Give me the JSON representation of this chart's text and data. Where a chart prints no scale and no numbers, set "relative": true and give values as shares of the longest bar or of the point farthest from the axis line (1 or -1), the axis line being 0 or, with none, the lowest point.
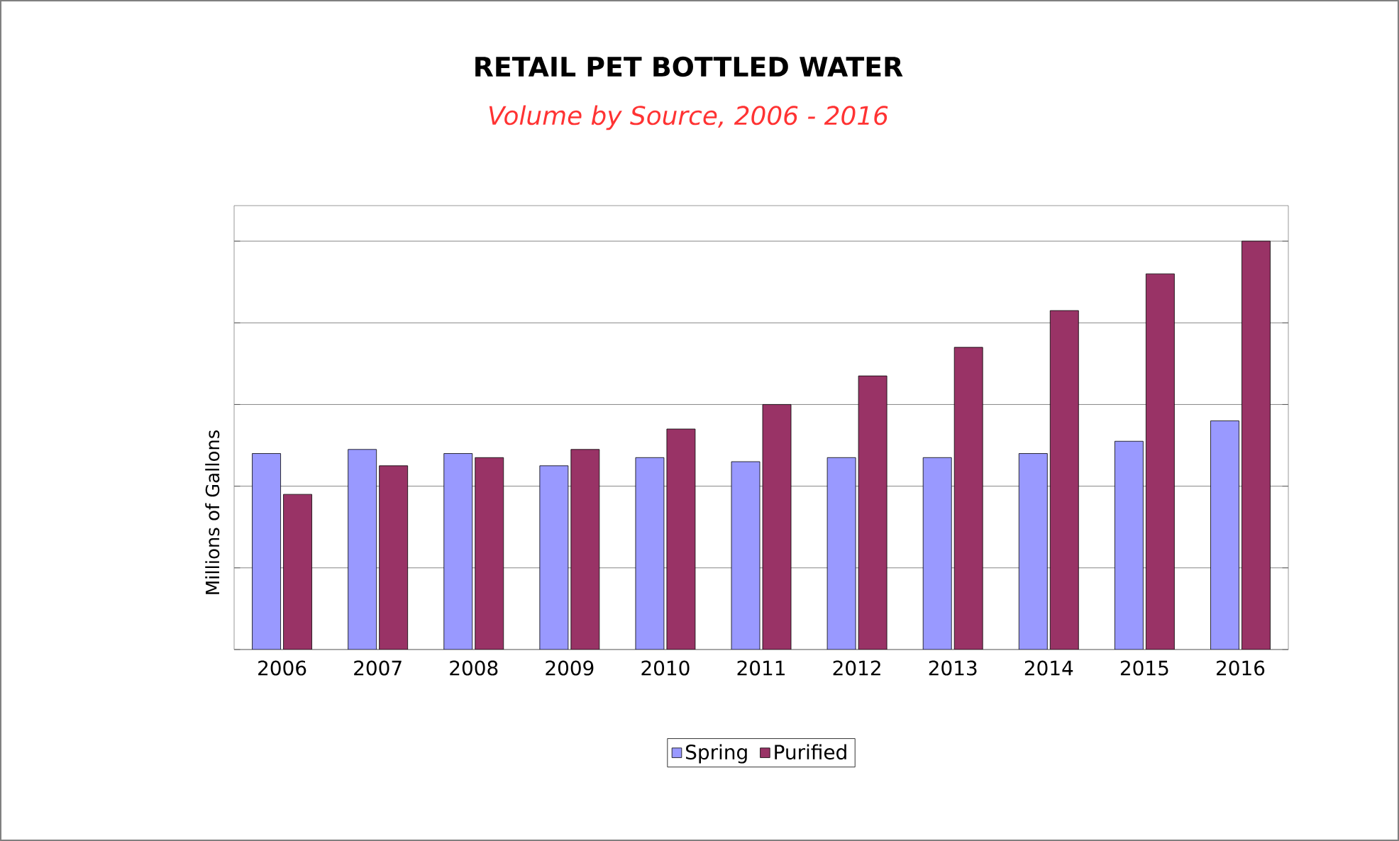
{
  "chart_data": {
    "type": "bar",
    "title": "RETAIL PET BOTTLED WATER",
    "subtitle": "Volume by Source, 2006 - 2016",
    "ylabel": "Millions of Gallons",
    "categories": [
      "2006",
      "2007",
      "2008",
      "2009",
      "2010",
      "2011",
      "2012",
      "2013",
      "2014",
      "2015",
      "2016"
    ],
    "relative": true,
    "grid": "y",
    "legend": "bottom",
    "series": [
      {
        "name": "Spring",
        "color": "#9999ff",
        "values": [
          0.48,
          0.49,
          0.48,
          0.45,
          0.47,
          0.46,
          0.47,
          0.47,
          0.48,
          0.51,
          0.56
        ]
      },
      {
        "name": "Purified",
        "color": "#993366",
        "values": [
          0.38,
          0.45,
          0.47,
          0.49,
          0.54,
          0.6,
          0.67,
          0.74,
          0.83,
          0.92,
          1.0
        ]
      }
    ]
  }
}
